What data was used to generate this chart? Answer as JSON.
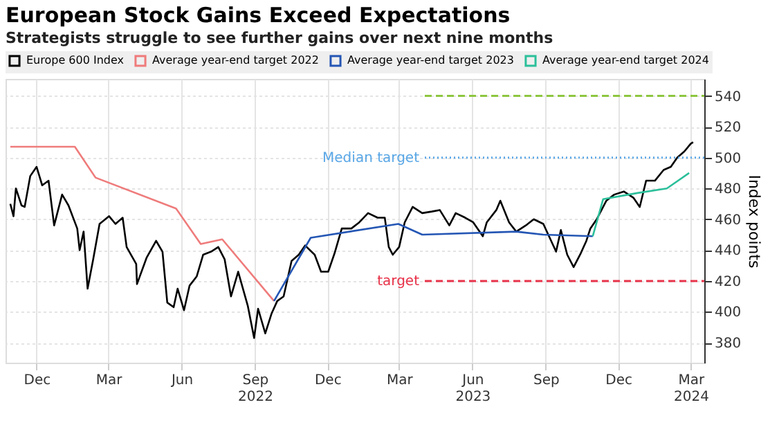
{
  "chart_data": {
    "type": "line",
    "title": "European Stock Gains Exceed Expectations",
    "subtitle": "Strategists struggle to see further gains over next nine months",
    "ylabel": "Index points",
    "legend": "top left",
    "grid": true,
    "line_style": "solid",
    "marker": "none",
    "xlim": [
      "2021-10-23",
      "2024-03-18"
    ],
    "xticks": [
      {
        "value": "2021-12-01",
        "label": "Dec"
      },
      {
        "value": "2022-03-01",
        "label": "Mar"
      },
      {
        "value": "2022-06-01",
        "label": "Jun"
      },
      {
        "value": "2022-09-01",
        "label": "Sep\n2022"
      },
      {
        "value": "2022-12-01",
        "label": "Dec"
      },
      {
        "value": "2023-03-01",
        "label": "Mar"
      },
      {
        "value": "2023-06-01",
        "label": "Jun\n2023"
      },
      {
        "value": "2023-09-01",
        "label": "Sep"
      },
      {
        "value": "2023-12-01",
        "label": "Dec"
      },
      {
        "value": "2024-03-01",
        "label": "Mar\n2024"
      }
    ],
    "ylim": [
      367,
      551
    ],
    "yticks": [
      380,
      400,
      420,
      440,
      460,
      480,
      500,
      520,
      540
    ],
    "series": [
      {
        "name": "Europe 600 Index",
        "color": "#000000",
        "x": [
          "2021-10-29",
          "2021-11-02",
          "2021-11-05",
          "2021-11-12",
          "2021-11-16",
          "2021-11-23",
          "2021-12-01",
          "2021-12-08",
          "2021-12-16",
          "2021-12-23",
          "2022-01-02",
          "2022-01-10",
          "2022-01-21",
          "2022-01-24",
          "2022-01-29",
          "2022-02-03",
          "2022-02-10",
          "2022-02-18",
          "2022-03-02",
          "2022-03-10",
          "2022-03-19",
          "2022-03-24",
          "2022-04-05",
          "2022-04-06",
          "2022-04-18",
          "2022-04-30",
          "2022-05-08",
          "2022-05-14",
          "2022-05-22",
          "2022-05-27",
          "2022-06-04",
          "2022-06-11",
          "2022-06-20",
          "2022-06-28",
          "2022-07-08",
          "2022-07-17",
          "2022-07-25",
          "2022-08-02",
          "2022-08-11",
          "2022-08-23",
          "2022-08-31",
          "2022-09-05",
          "2022-09-14",
          "2022-09-22",
          "2022-09-29",
          "2022-10-07",
          "2022-10-17",
          "2022-10-26",
          "2022-11-03",
          "2022-11-15",
          "2022-11-23",
          "2022-12-02",
          "2022-12-10",
          "2022-12-19",
          "2022-12-31",
          "2023-01-10",
          "2023-01-21",
          "2023-02-02",
          "2023-02-11",
          "2023-02-16",
          "2023-02-21",
          "2023-03-01",
          "2023-03-08",
          "2023-03-18",
          "2023-03-30",
          "2023-04-11",
          "2023-04-21",
          "2023-05-03",
          "2023-05-11",
          "2023-05-23",
          "2023-06-02",
          "2023-06-14",
          "2023-06-19",
          "2023-07-01",
          "2023-07-06",
          "2023-07-17",
          "2023-07-26",
          "2023-08-07",
          "2023-08-17",
          "2023-08-29",
          "2023-09-06",
          "2023-09-14",
          "2023-09-20",
          "2023-09-28",
          "2023-10-06",
          "2023-10-15",
          "2023-10-22",
          "2023-10-27",
          "2023-11-04",
          "2023-11-16",
          "2023-11-26",
          "2023-12-08",
          "2023-12-20",
          "2023-12-28",
          "2024-01-05",
          "2024-01-16",
          "2024-01-27",
          "2024-02-05",
          "2024-02-13",
          "2024-02-22",
          "2024-03-01",
          "2024-03-04"
        ],
        "values": [
          470,
          462,
          480,
          469,
          468,
          488,
          494,
          482,
          485,
          456,
          476,
          469,
          454,
          440,
          452,
          415,
          434,
          457,
          462,
          457,
          461,
          442,
          431,
          418,
          435,
          446,
          439,
          406,
          403,
          415,
          401,
          417,
          423,
          437,
          439,
          442,
          434,
          410,
          426,
          404,
          383,
          402,
          386,
          399,
          407,
          410,
          433,
          437,
          443,
          437,
          426,
          426,
          438,
          454,
          454,
          458,
          464,
          461,
          461,
          442,
          437,
          442,
          458,
          468,
          464,
          465,
          466,
          456,
          464,
          461,
          458,
          449,
          458,
          466,
          472,
          458,
          452,
          456,
          460,
          457,
          448,
          439,
          453,
          437,
          429,
          438,
          446,
          454,
          460,
          472,
          476,
          478,
          474,
          468,
          485,
          485,
          492,
          494,
          500,
          504,
          509,
          510
        ]
      },
      {
        "name": "Average year-end target 2022",
        "color": "#ef7b7b",
        "x": [
          "2021-10-29",
          "2022-01-18",
          "2022-02-13",
          "2022-05-25",
          "2022-06-25",
          "2022-07-22",
          "2022-09-25"
        ],
        "values": [
          507,
          507,
          487,
          467,
          444,
          447,
          407
        ]
      },
      {
        "name": "Average year-end target 2023",
        "color": "#2456b4",
        "x": [
          "2022-09-25",
          "2022-11-10",
          "2023-02-28",
          "2023-03-30",
          "2023-07-26",
          "2023-08-29",
          "2023-10-30"
        ],
        "values": [
          407,
          448,
          457,
          450,
          452,
          450,
          449
        ]
      },
      {
        "name": "Average year-end target 2024",
        "color": "#2bbf9a",
        "x": [
          "2023-10-30",
          "2023-11-12",
          "2023-12-25",
          "2024-01-31",
          "2024-02-28"
        ],
        "values": [
          449,
          473,
          477,
          480,
          490
        ]
      }
    ],
    "ref_lines": [
      {
        "axis": "y",
        "value": 540,
        "color": "#8dc63f",
        "line_style": "dashed"
      },
      {
        "axis": "y",
        "value": 500,
        "label": "Median target",
        "color": "#5aa7e6",
        "line_style": "dotted"
      },
      {
        "axis": "y",
        "value": 420,
        "label": "target",
        "color": "#e8334a",
        "line_style": "dashed"
      }
    ]
  }
}
